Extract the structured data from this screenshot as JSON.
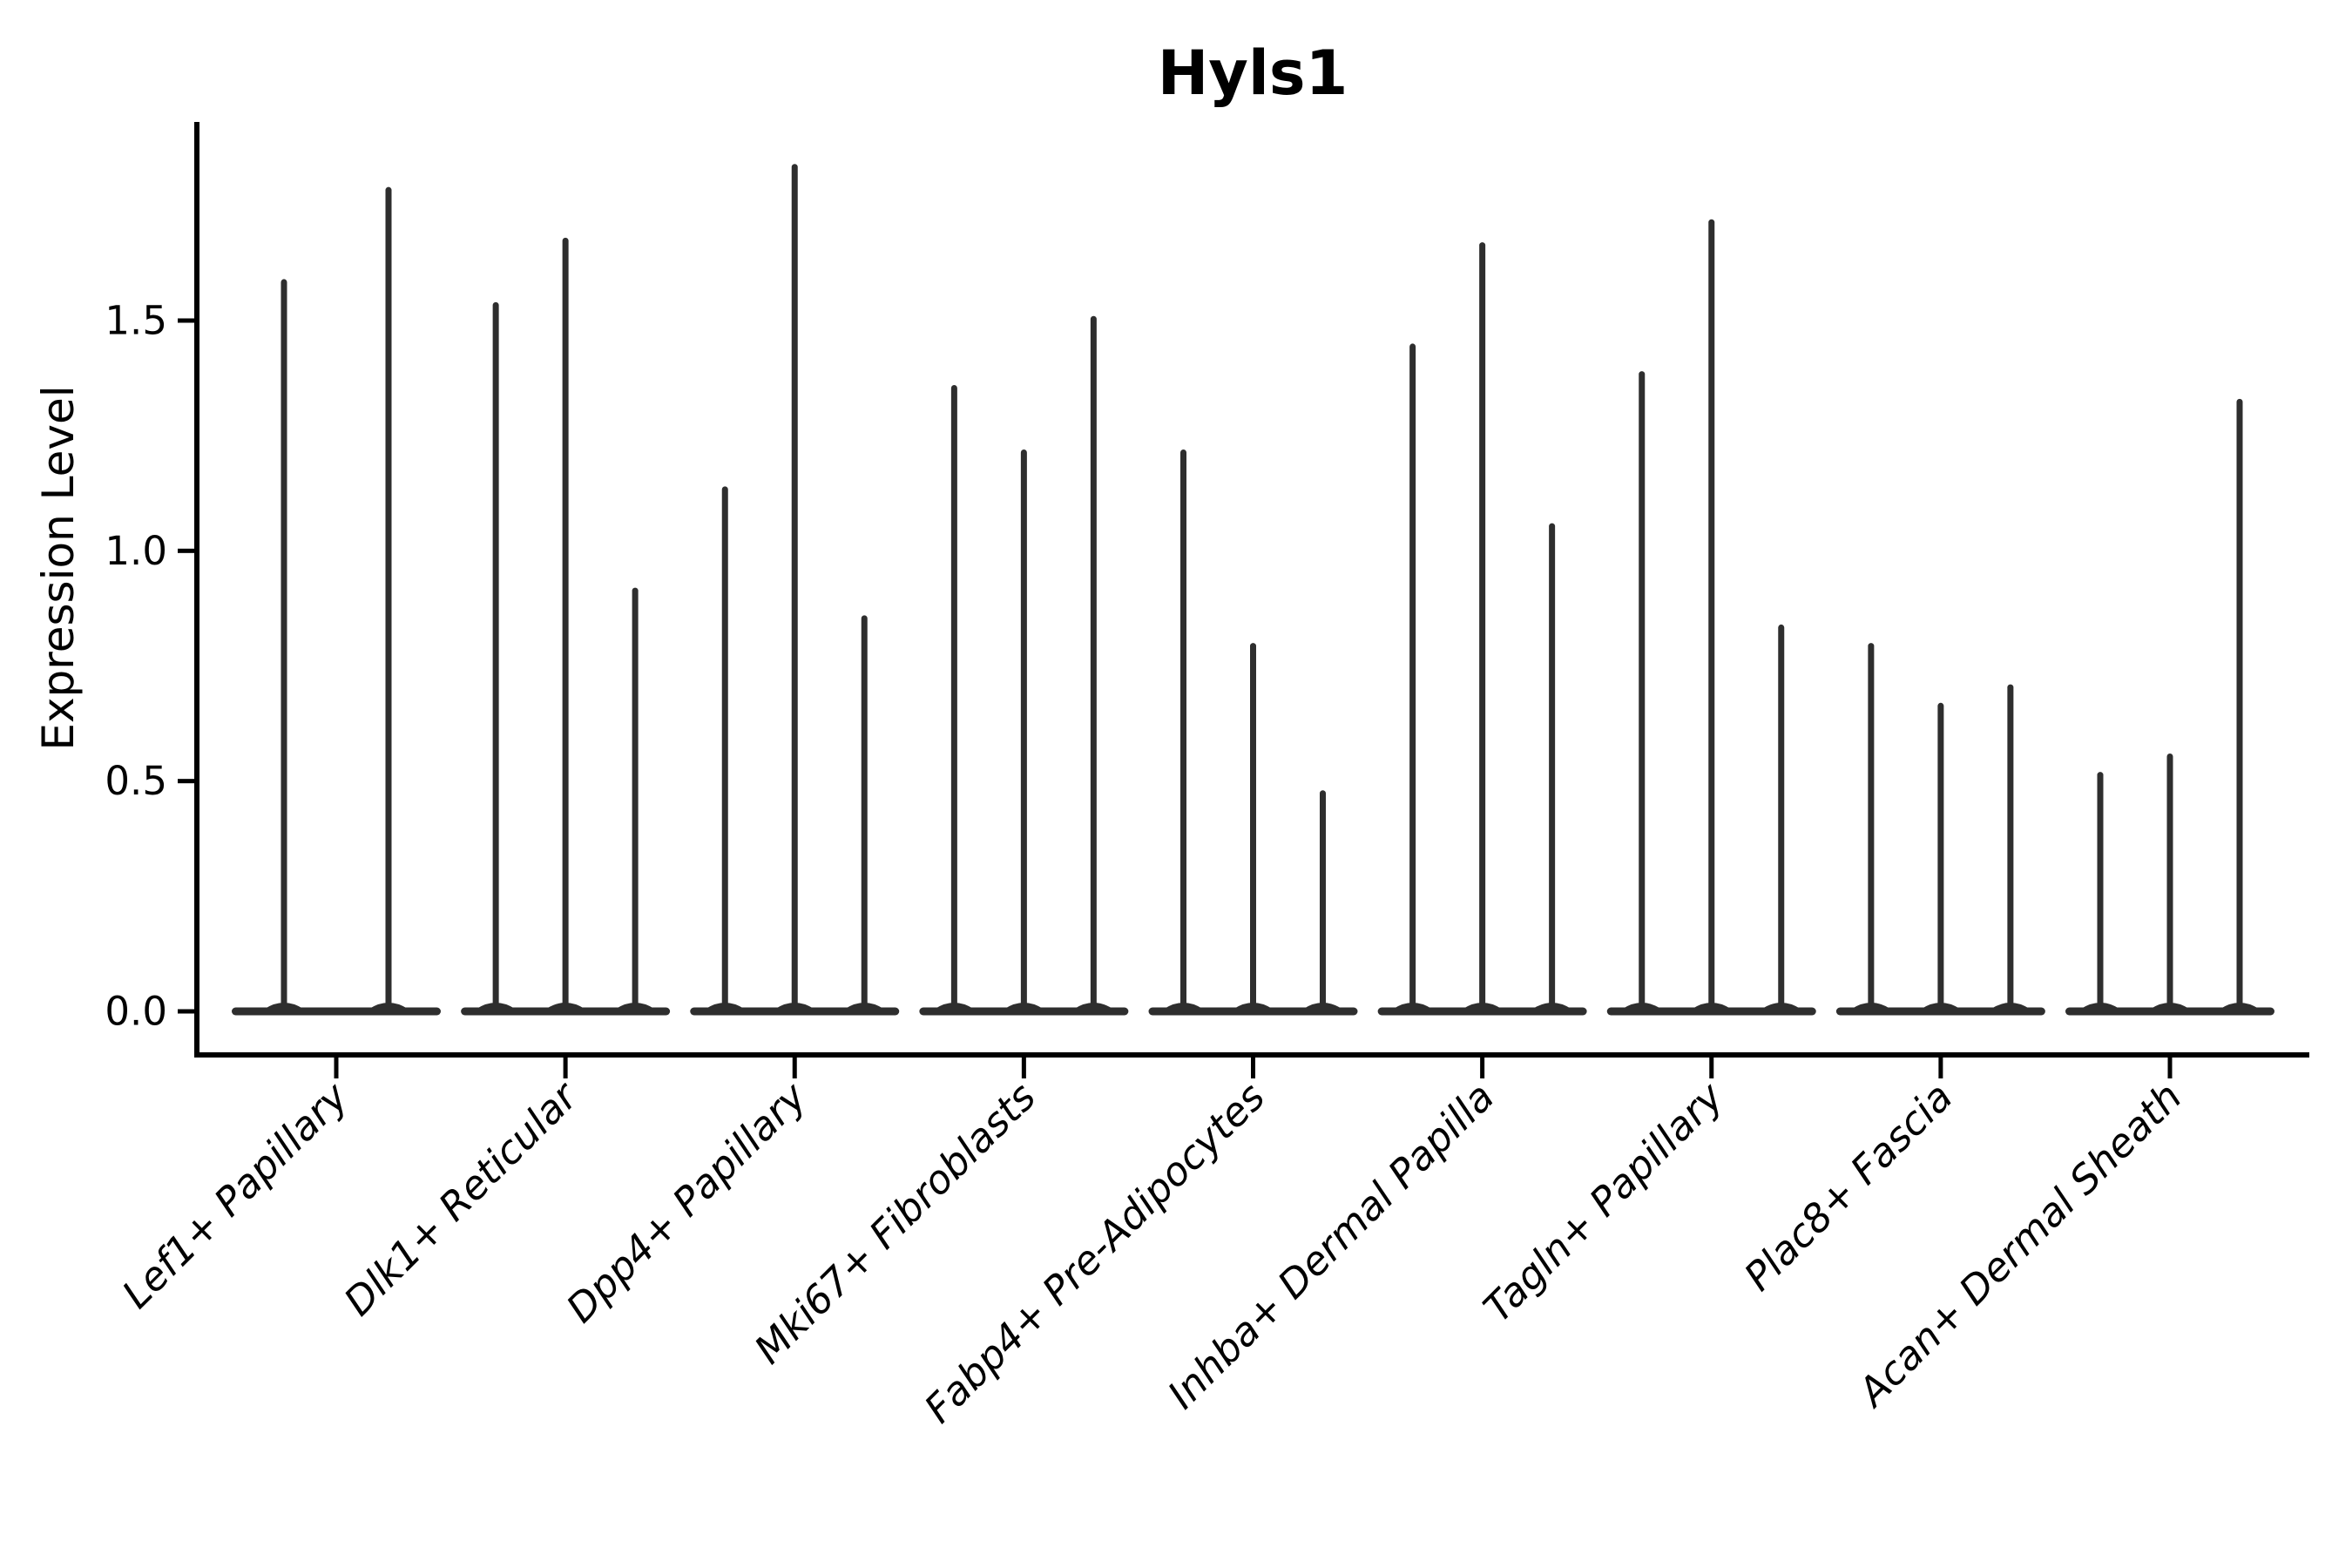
{
  "chart_data": {
    "type": "violin",
    "title": "Hyls1",
    "ylabel": "Expression Level",
    "xlabel": "",
    "ytick_labels": [
      "0.0",
      "0.5",
      "1.0",
      "1.5"
    ],
    "ytick_values": [
      0,
      0.5,
      1.0,
      1.5
    ],
    "ylim": [
      -0.1,
      1.93
    ],
    "grid": false,
    "legend_position": "none",
    "violin_style": "needle violins: nearly all density collapsed at expression 0 with a thin vertical tail rising to the maximum expression value; flat dark base bar along 0 for each group",
    "categories": [
      "Lef1+ Papillary",
      "Dlk1+ Reticular",
      "Dpp4+ Papillary",
      "Mki67+ Fibroblasts",
      "Fabp4+ Pre-Adipocytes",
      "Inhba+ Dermal Papilla",
      "Tagln+ Papillary",
      "Plac8+ Fascia",
      "Acan+ Dermal Sheath"
    ],
    "series": [
      {
        "category": "Lef1+ Papillary",
        "violin_max_expression": [
          1.59,
          1.79
        ]
      },
      {
        "category": "Dlk1+ Reticular",
        "violin_max_expression": [
          1.54,
          1.68,
          0.92
        ]
      },
      {
        "category": "Dpp4+ Papillary",
        "violin_max_expression": [
          1.14,
          1.84,
          0.86
        ]
      },
      {
        "category": "Mki67+ Fibroblasts",
        "violin_max_expression": [
          1.36,
          1.22,
          1.51
        ]
      },
      {
        "category": "Fabp4+ Pre-Adipocytes",
        "violin_max_expression": [
          1.22,
          0.8,
          0.48
        ]
      },
      {
        "category": "Inhba+ Dermal Papilla",
        "violin_max_expression": [
          1.45,
          1.67,
          1.06
        ]
      },
      {
        "category": "Tagln+ Papillary",
        "violin_max_expression": [
          1.39,
          1.72,
          0.84
        ]
      },
      {
        "category": "Plac8+ Fascia",
        "violin_max_expression": [
          0.8,
          0.67,
          0.71
        ]
      },
      {
        "category": "Acan+ Dermal Sheath",
        "violin_max_expression": [
          0.52,
          0.56,
          1.33
        ]
      }
    ],
    "colors": {
      "violin": "#2e2e2e",
      "axis": "#000000",
      "text": "#000000",
      "background": "#ffffff"
    }
  }
}
